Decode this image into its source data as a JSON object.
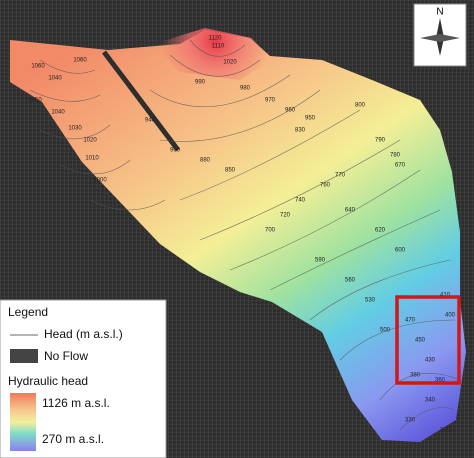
{
  "map": {
    "north_label": "N",
    "legend": {
      "title": "Legend",
      "head_item": "Head (m a.s.l.)",
      "no_flow_item": "No Flow",
      "ramp_title": "Hydraulic head",
      "ramp_high": "1126 m a.s.l.",
      "ramp_low": "270 m a.s.l."
    },
    "contour_labels": [
      "1120",
      "1110",
      "1060",
      "1040",
      "1020",
      "1050",
      "1060",
      "1040",
      "1030",
      "1020",
      "1010",
      "1000",
      "990",
      "980",
      "970",
      "960",
      "950",
      "940",
      "900",
      "880",
      "850",
      "830",
      "800",
      "790",
      "780",
      "770",
      "760",
      "740",
      "720",
      "700",
      "670",
      "640",
      "620",
      "600",
      "590",
      "560",
      "530",
      "500",
      "470",
      "450",
      "430",
      "410",
      "400",
      "380",
      "360",
      "340",
      "330",
      "310"
    ]
  }
}
